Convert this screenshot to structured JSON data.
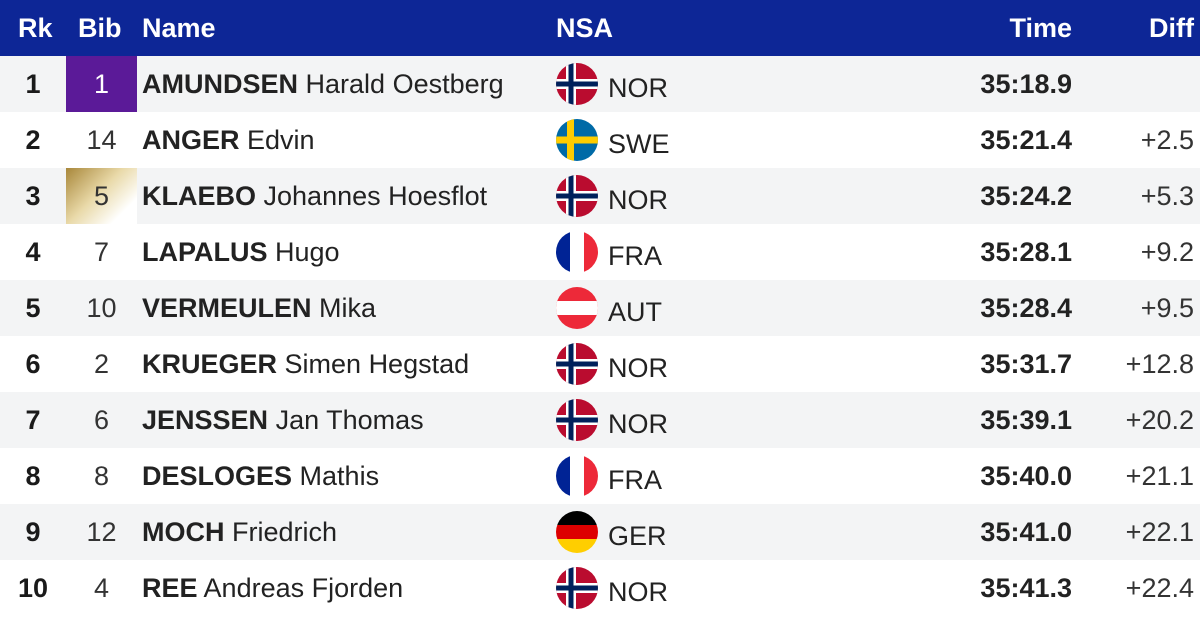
{
  "header": {
    "rk": "Rk",
    "bib": "Bib",
    "name": "Name",
    "nsa": "NSA",
    "time": "Time",
    "diff": "Diff"
  },
  "colors": {
    "header_bg": "#0d2696",
    "bib_leader": "#5b1a98",
    "bib_gold": "#c9a95a"
  },
  "rows": [
    {
      "rk": "1",
      "bib": "1",
      "bib_style": "purple",
      "last": "AMUNDSEN",
      "first": "Harald Oestberg",
      "flag": "norway-flag-icon",
      "nsa": "NOR",
      "time": "35:18.9",
      "diff": ""
    },
    {
      "rk": "2",
      "bib": "14",
      "bib_style": "",
      "last": "ANGER",
      "first": "Edvin",
      "flag": "sweden-flag-icon",
      "nsa": "SWE",
      "time": "35:21.4",
      "diff": "+2.5"
    },
    {
      "rk": "3",
      "bib": "5",
      "bib_style": "gold",
      "last": "KLAEBO",
      "first": "Johannes Hoesflot",
      "flag": "norway-flag-icon",
      "nsa": "NOR",
      "time": "35:24.2",
      "diff": "+5.3"
    },
    {
      "rk": "4",
      "bib": "7",
      "bib_style": "",
      "last": "LAPALUS",
      "first": "Hugo",
      "flag": "france-flag-icon",
      "nsa": "FRA",
      "time": "35:28.1",
      "diff": "+9.2"
    },
    {
      "rk": "5",
      "bib": "10",
      "bib_style": "",
      "last": "VERMEULEN",
      "first": "Mika",
      "flag": "austria-flag-icon",
      "nsa": "AUT",
      "time": "35:28.4",
      "diff": "+9.5"
    },
    {
      "rk": "6",
      "bib": "2",
      "bib_style": "",
      "last": "KRUEGER",
      "first": "Simen Hegstad",
      "flag": "norway-flag-icon",
      "nsa": "NOR",
      "time": "35:31.7",
      "diff": "+12.8"
    },
    {
      "rk": "7",
      "bib": "6",
      "bib_style": "",
      "last": "JENSSEN",
      "first": "Jan Thomas",
      "flag": "norway-flag-icon",
      "nsa": "NOR",
      "time": "35:39.1",
      "diff": "+20.2"
    },
    {
      "rk": "8",
      "bib": "8",
      "bib_style": "",
      "last": "DESLOGES",
      "first": "Mathis",
      "flag": "france-flag-icon",
      "nsa": "FRA",
      "time": "35:40.0",
      "diff": "+21.1"
    },
    {
      "rk": "9",
      "bib": "12",
      "bib_style": "",
      "last": "MOCH",
      "first": "Friedrich",
      "flag": "germany-flag-icon",
      "nsa": "GER",
      "time": "35:41.0",
      "diff": "+22.1"
    },
    {
      "rk": "10",
      "bib": "4",
      "bib_style": "",
      "last": "REE",
      "first": "Andreas Fjorden",
      "flag": "norway-flag-icon",
      "nsa": "NOR",
      "time": "35:41.3",
      "diff": "+22.4"
    }
  ]
}
